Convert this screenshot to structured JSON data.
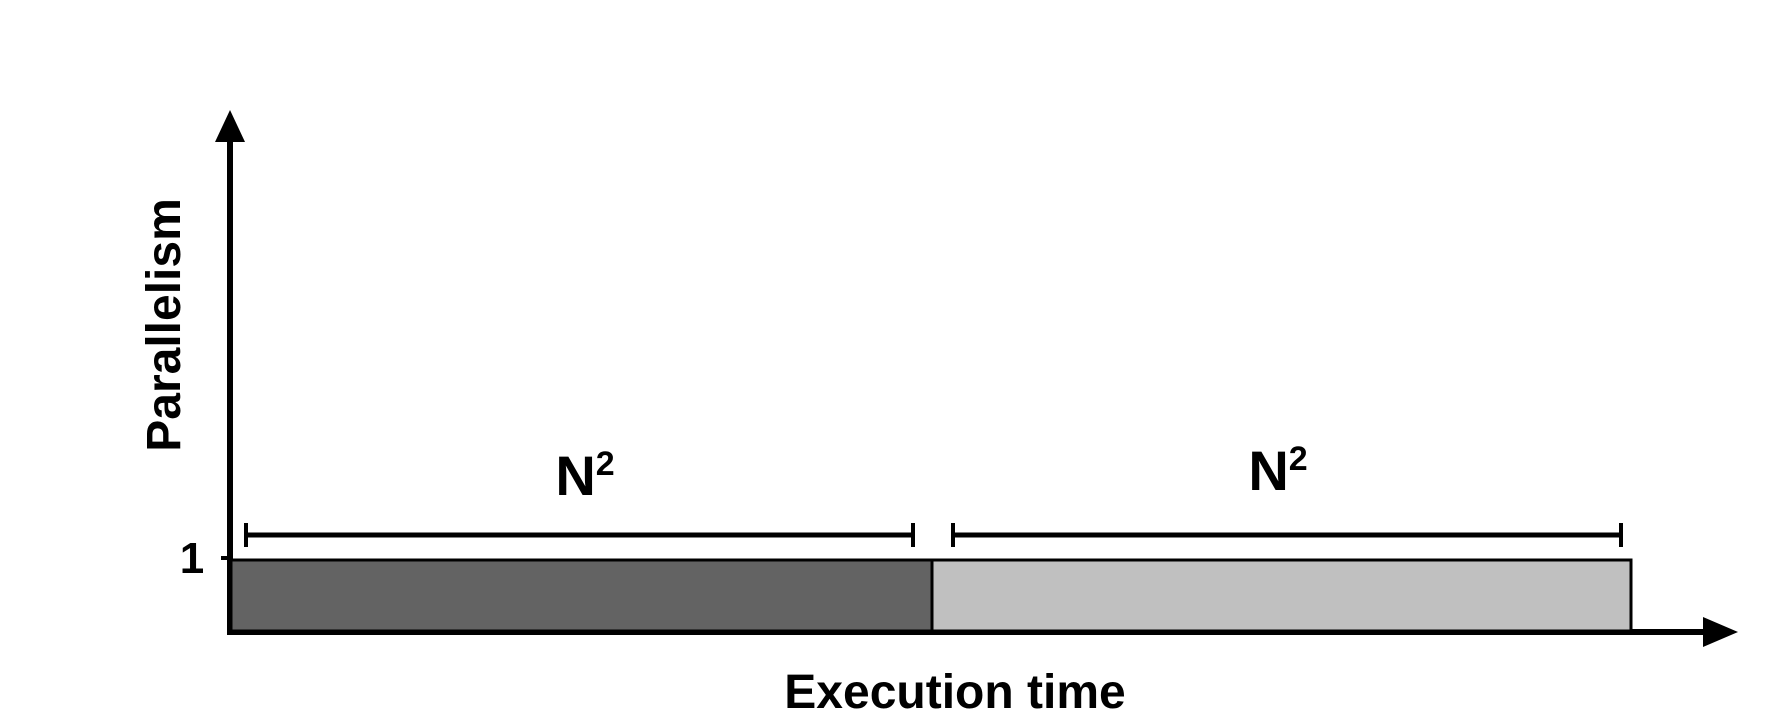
{
  "diagram": {
    "axes": {
      "y_label": "Parallelism",
      "x_label": "Execution time",
      "y_tick_label": "1"
    },
    "phases": [
      {
        "span_label": "N",
        "span_superscript": "2",
        "fill": "#636363"
      },
      {
        "span_label": "N",
        "span_superscript": "2",
        "fill": "#c0c0c0"
      }
    ],
    "colors": {
      "axis": "#000000",
      "background": "#ffffff"
    }
  }
}
